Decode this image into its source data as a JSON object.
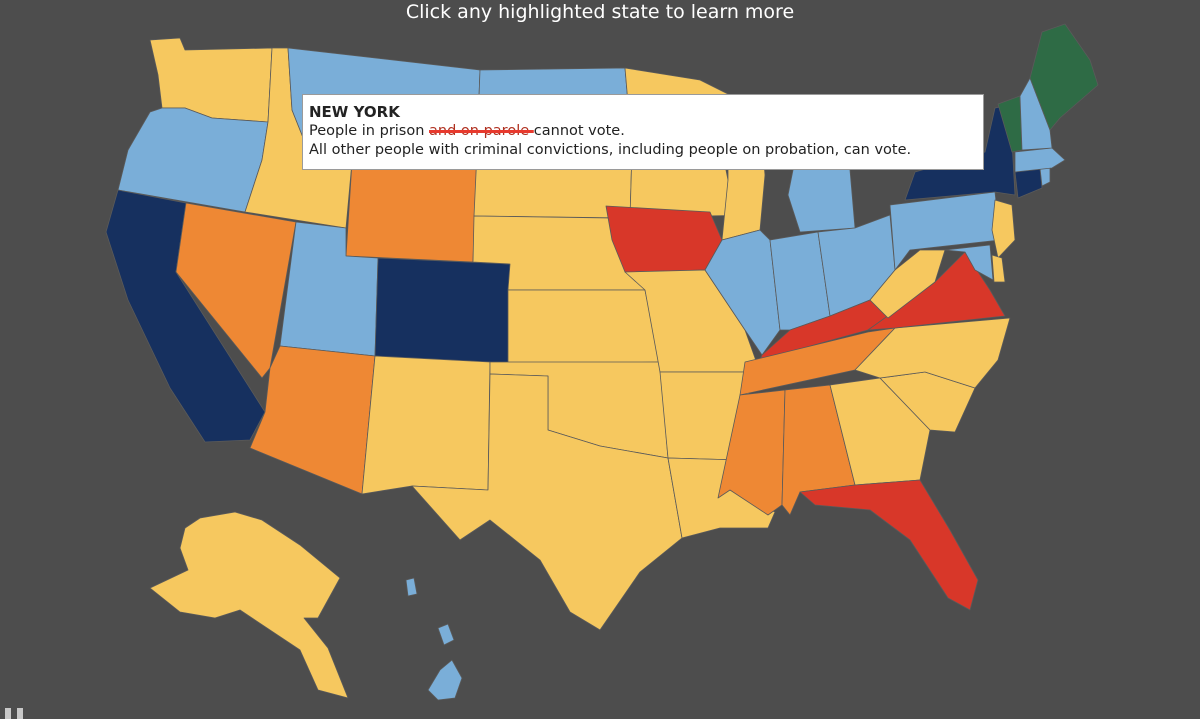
{
  "header": {
    "title": "Click any highlighted state to learn more"
  },
  "colors": {
    "background": "#4d4d4d",
    "can_vote": "#2e6b45",
    "prison_only": "#16305f",
    "prison_parole": "#7aaed8",
    "plus_probation": "#f6c85f",
    "some_after_sentence": "#ee8834",
    "permanent_lifetime": "#d83729",
    "tooltip_strike": "#e8392d"
  },
  "tooltip": {
    "state": "NEW YORK",
    "line1_before": "People in prison ",
    "line1_struck": "and on parole ",
    "line1_after": "cannot vote.",
    "line2": "All other people with criminal convictions, including people on probation, can vote."
  },
  "controls": {
    "pause_icon": "pause-icon"
  },
  "states": {
    "WA": "plus_probation",
    "OR": "prison_parole",
    "CA": "prison_only",
    "NV": "some_after_sentence",
    "ID": "plus_probation",
    "MT": "prison_parole",
    "WY": "some_after_sentence",
    "UT": "prison_parole",
    "CO": "prison_only",
    "AZ": "some_after_sentence",
    "NM": "plus_probation",
    "ND": "prison_parole",
    "SD": "plus_probation",
    "NE": "plus_probation",
    "KS": "plus_probation",
    "OK": "plus_probation",
    "TX": "plus_probation",
    "MN": "plus_probation",
    "IA": "permanent_lifetime",
    "MO": "plus_probation",
    "AR": "plus_probation",
    "LA": "plus_probation",
    "WI": "plus_probation",
    "IL": "prison_parole",
    "MI": "prison_parole",
    "IN": "prison_parole",
    "OH": "prison_parole",
    "KY": "permanent_lifetime",
    "TN": "some_after_sentence",
    "MS": "some_after_sentence",
    "AL": "some_after_sentence",
    "GA": "plus_probation",
    "FL": "permanent_lifetime",
    "SC": "plus_probation",
    "NC": "plus_probation",
    "VA": "permanent_lifetime",
    "WV": "plus_probation",
    "PA": "prison_parole",
    "NY": "prison_only",
    "VT": "can_vote",
    "ME": "can_vote",
    "NH": "prison_parole",
    "MA": "prison_parole",
    "CT": "prison_only",
    "RI": "prison_parole",
    "NJ": "plus_probation",
    "DE": "plus_probation",
    "MD": "prison_parole",
    "AK": "plus_probation",
    "HI": "prison_parole"
  }
}
